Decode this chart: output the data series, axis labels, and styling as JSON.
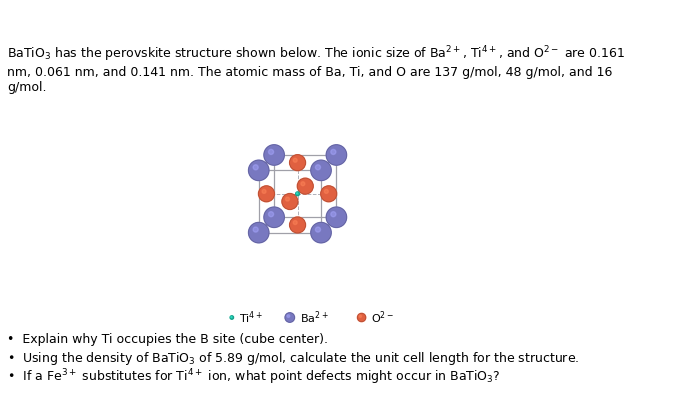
{
  "color_Ti": "#20B8A0",
  "color_Ba": "#7878C0",
  "color_O": "#E06040",
  "bg_color": "#ffffff",
  "legend_Ti": "Ti⁴⁺",
  "legend_Ba": "Ba²⁺",
  "legend_O": "O²⁻",
  "header": "BaTiO₃ has the perovskite structure shown below. The ionic size of Ba²⁺, Ti⁴⁺, and O²⁻ are 0.161\nnm, 0.061 nm, and 0.141 nm. The atomic mass of Ba, Ti, and O are 137 g/mol, 48 g/mol, and 16\ng/mol.",
  "b1": "Explain why Ti occupies the B site (cube center).",
  "b2": "Using the density of BaTiO₃ of 5.89 g/mol, calculate the unit cell length for the structure.",
  "b3": "If a Fe³⁺ substitutes for Ti⁴⁺ ion, what point defects might occur in BaTiO₃?"
}
